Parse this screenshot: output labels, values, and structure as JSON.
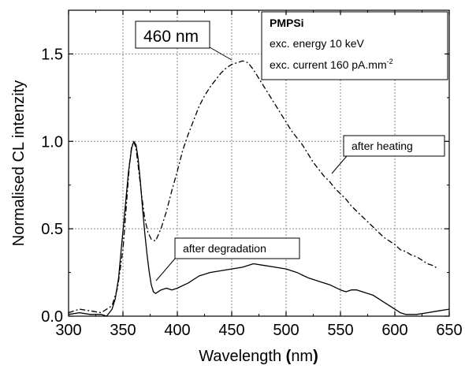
{
  "chart_data": {
    "type": "line",
    "title": "",
    "xlabel": "Wavelength",
    "xlabel_unit_open": " (",
    "xlabel_unit": "nm",
    "xlabel_unit_close": ")",
    "ylabel": "Normalised CL intenzity",
    "xlim": [
      300,
      650
    ],
    "ylim": [
      0,
      1.75
    ],
    "xticks": [
      300,
      350,
      400,
      450,
      500,
      550,
      600,
      650
    ],
    "yticks": [
      0.0,
      0.5,
      1.0,
      1.5
    ],
    "xtick_labels": [
      "300",
      "350",
      "400",
      "450",
      "500",
      "550",
      "600",
      "650"
    ],
    "ytick_labels": [
      "0.0",
      "0.5",
      "1.0",
      "1.5"
    ],
    "grid": true,
    "series": [
      {
        "name": "after heating",
        "style": "dash-dot",
        "color": "#000000",
        "x": [
          300,
          310,
          320,
          330,
          340,
          345,
          350,
          353,
          356,
          358,
          360,
          362,
          364,
          367,
          370,
          373,
          376,
          380,
          385,
          390,
          395,
          400,
          405,
          410,
          415,
          420,
          425,
          430,
          435,
          440,
          445,
          450,
          455,
          460,
          465,
          470,
          475,
          480,
          485,
          490,
          495,
          500,
          505,
          510,
          515,
          520,
          525,
          530,
          535,
          540,
          545,
          550,
          555,
          560,
          565,
          570,
          575,
          580,
          585,
          590,
          595,
          600,
          605,
          610,
          615,
          620,
          625,
          630,
          635,
          640
        ],
        "y": [
          0.02,
          0.04,
          0.03,
          0.02,
          0.06,
          0.16,
          0.38,
          0.62,
          0.87,
          0.97,
          1.0,
          0.96,
          0.86,
          0.7,
          0.56,
          0.48,
          0.44,
          0.43,
          0.5,
          0.6,
          0.72,
          0.83,
          0.95,
          1.04,
          1.12,
          1.2,
          1.26,
          1.31,
          1.35,
          1.39,
          1.42,
          1.44,
          1.45,
          1.46,
          1.45,
          1.41,
          1.36,
          1.31,
          1.26,
          1.21,
          1.16,
          1.11,
          1.06,
          1.02,
          0.98,
          0.93,
          0.88,
          0.84,
          0.8,
          0.77,
          0.73,
          0.7,
          0.67,
          0.63,
          0.6,
          0.57,
          0.54,
          0.51,
          0.48,
          0.45,
          0.43,
          0.41,
          0.38,
          0.37,
          0.35,
          0.34,
          0.32,
          0.3,
          0.29,
          0.27
        ]
      },
      {
        "name": "after degradation",
        "style": "solid",
        "color": "#000000",
        "x": [
          300,
          310,
          320,
          330,
          335,
          340,
          343,
          346,
          349,
          352,
          355,
          358,
          360,
          362,
          364,
          366,
          368,
          370,
          372,
          374,
          376,
          378,
          380,
          385,
          390,
          395,
          400,
          410,
          420,
          430,
          440,
          450,
          460,
          470,
          480,
          490,
          500,
          510,
          520,
          530,
          540,
          550,
          555,
          560,
          565,
          570,
          580,
          590,
          600,
          605,
          610,
          620,
          630,
          640,
          650
        ],
        "y": [
          0.01,
          0.02,
          0.01,
          0.01,
          0.0,
          0.04,
          0.1,
          0.22,
          0.42,
          0.62,
          0.82,
          0.96,
          1.0,
          0.98,
          0.9,
          0.77,
          0.62,
          0.48,
          0.36,
          0.26,
          0.18,
          0.14,
          0.13,
          0.15,
          0.16,
          0.15,
          0.16,
          0.19,
          0.23,
          0.25,
          0.26,
          0.27,
          0.28,
          0.3,
          0.29,
          0.28,
          0.27,
          0.25,
          0.22,
          0.2,
          0.18,
          0.15,
          0.14,
          0.15,
          0.15,
          0.14,
          0.12,
          0.08,
          0.04,
          0.02,
          0.01,
          0.01,
          0.02,
          0.03,
          0.04
        ]
      }
    ],
    "annotations": [
      {
        "text": "460 nm",
        "x": 460,
        "y": 1.46
      },
      {
        "text": "after heating",
        "x": 545,
        "y": 0.8
      },
      {
        "text": "after degradation",
        "x": 380,
        "y": 0.18
      }
    ],
    "info_box": {
      "title": "PMPSi",
      "line1": "exc. energy 10 keV",
      "line2": "exc. current 160 pA.mm",
      "line2_sup": "-2"
    }
  }
}
